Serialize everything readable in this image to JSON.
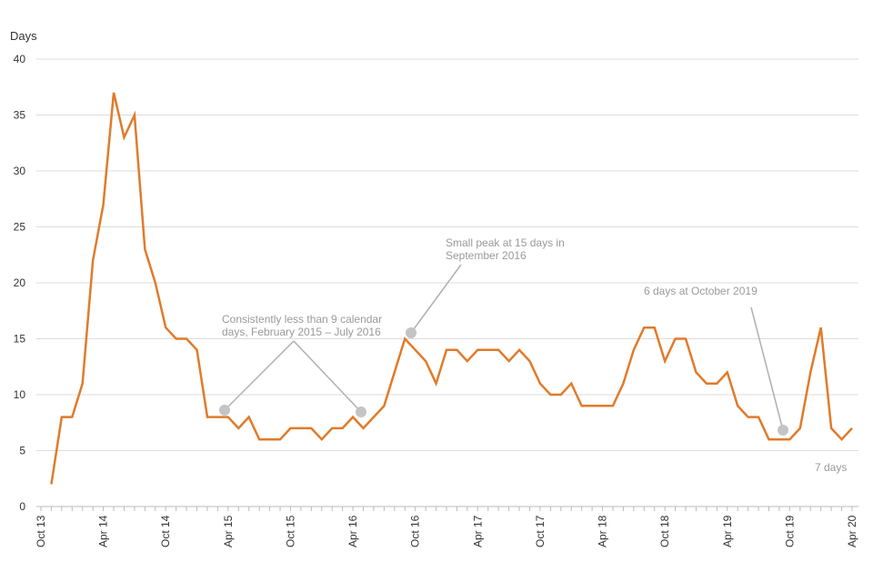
{
  "chart_data": {
    "type": "line",
    "title": "",
    "ylabel": "Days",
    "xlabel": "",
    "ylim": [
      0,
      40
    ],
    "yticks": [
      0,
      5,
      10,
      15,
      20,
      25,
      30,
      35,
      40
    ],
    "grid": true,
    "x_tick_labels": [
      "Oct 13",
      "Apr 14",
      "Oct 14",
      "Apr 15",
      "Oct 15",
      "Apr 16",
      "Oct 16",
      "Apr 17",
      "Oct 17",
      "Apr 18",
      "Oct 18",
      "Apr 19",
      "Oct 19",
      "Apr 20"
    ],
    "x_start": "2013-11",
    "x": [
      "2013-11",
      "2013-12",
      "2014-01",
      "2014-02",
      "2014-03",
      "2014-04",
      "2014-05",
      "2014-06",
      "2014-07",
      "2014-08",
      "2014-09",
      "2014-10",
      "2014-11",
      "2014-12",
      "2015-01",
      "2015-02",
      "2015-03",
      "2015-04",
      "2015-05",
      "2015-06",
      "2015-07",
      "2015-08",
      "2015-09",
      "2015-10",
      "2015-11",
      "2015-12",
      "2016-01",
      "2016-02",
      "2016-03",
      "2016-04",
      "2016-05",
      "2016-06",
      "2016-07",
      "2016-08",
      "2016-09",
      "2016-10",
      "2016-11",
      "2016-12",
      "2017-01",
      "2017-02",
      "2017-03",
      "2017-04",
      "2017-05",
      "2017-06",
      "2017-07",
      "2017-08",
      "2017-09",
      "2017-10",
      "2017-11",
      "2017-12",
      "2018-01",
      "2018-02",
      "2018-03",
      "2018-04",
      "2018-05",
      "2018-06",
      "2018-07",
      "2018-08",
      "2018-09",
      "2018-10",
      "2018-11",
      "2018-12",
      "2019-01",
      "2019-02",
      "2019-03",
      "2019-04",
      "2019-05",
      "2019-06",
      "2019-07",
      "2019-08",
      "2019-09",
      "2019-10",
      "2019-11",
      "2019-12",
      "2020-01",
      "2020-02",
      "2020-03",
      "2020-04"
    ],
    "series": [
      {
        "color": "#e07b2a",
        "values": [
          2,
          8,
          8,
          11,
          22,
          27,
          37,
          33,
          35,
          23,
          20,
          16,
          15,
          15,
          14,
          8,
          8,
          8,
          7,
          8,
          6,
          6,
          6,
          7,
          7,
          7,
          6,
          7,
          7,
          8,
          7,
          8,
          9,
          12,
          15,
          14,
          13,
          11,
          14,
          14,
          13,
          14,
          14,
          14,
          13,
          14,
          13,
          11,
          10,
          10,
          11,
          9,
          9,
          9,
          9,
          11,
          14,
          16,
          16,
          13,
          15,
          15,
          12,
          11,
          11,
          12,
          9,
          8,
          8,
          6,
          6,
          6,
          7,
          12,
          16,
          7,
          6,
          7
        ]
      }
    ],
    "annotations": [
      {
        "lines": [
          "Consistently less than 9 calendar",
          "days, February 2015 – July 2016"
        ],
        "points": [
          "2015-04",
          "2016-05"
        ]
      },
      {
        "lines": [
          "Small peak at 15 days in",
          "September 2016"
        ],
        "points": [
          "2016-09"
        ]
      },
      {
        "lines": [
          "6 days at October 2019"
        ],
        "points": [
          "2019-10"
        ]
      },
      {
        "lines": [
          "7 days"
        ],
        "points": []
      }
    ]
  }
}
